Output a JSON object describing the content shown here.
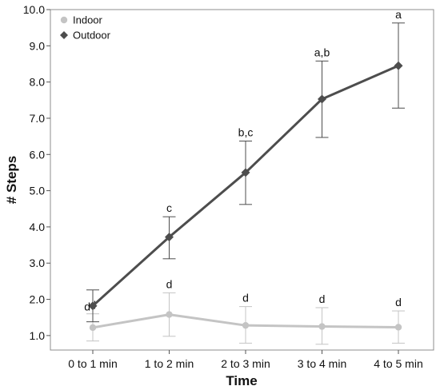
{
  "chart_data": {
    "type": "line",
    "title": "",
    "xlabel": "Time",
    "ylabel": "# Steps",
    "categories": [
      "0 to 1 min",
      "1 to 2 min",
      "2 to 3 min",
      "3 to 4 min",
      "4 to 5 min"
    ],
    "ylim": [
      0.6,
      10.0
    ],
    "yticks": [
      "1.0",
      "2.0",
      "3.0",
      "4.0",
      "5.0",
      "6.0",
      "7.0",
      "8.0",
      "9.0",
      "10.0"
    ],
    "grid": false,
    "legend": "top-left",
    "series": [
      {
        "name": "Indoor",
        "marker": "circle",
        "color": "#c4c4c4",
        "values": [
          1.22,
          1.58,
          1.28,
          1.25,
          1.23
        ],
        "error_low": [
          0.85,
          0.98,
          0.79,
          0.76,
          0.79
        ],
        "error_high": [
          1.6,
          2.18,
          1.8,
          1.77,
          1.68
        ],
        "annotations": [
          "d",
          "d",
          "d",
          "d",
          "d"
        ]
      },
      {
        "name": "Outdoor",
        "marker": "diamond",
        "color": "#4d4d4d",
        "values": [
          1.82,
          3.72,
          5.5,
          7.53,
          8.45
        ],
        "error_low": [
          1.38,
          3.12,
          4.62,
          6.47,
          7.28
        ],
        "error_high": [
          2.26,
          4.28,
          6.37,
          8.58,
          9.63
        ],
        "annotations": [
          "d",
          "c",
          "b,c",
          "a,b",
          "a"
        ]
      }
    ]
  }
}
